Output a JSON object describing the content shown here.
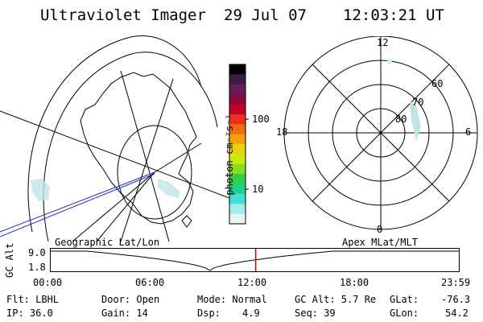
{
  "header": {
    "title": "Ultraviolet Imager",
    "date": "29 Jul 07",
    "time": "12:03:21 UT"
  },
  "colorbar": {
    "unit_label": "photon cm⁻²s⁻¹",
    "ticks": [
      "100",
      "10"
    ],
    "colors": [
      "#000000",
      "#3c1a4a",
      "#6b1a5a",
      "#8a0a3a",
      "#c0002a",
      "#e8301a",
      "#f06a10",
      "#f4a010",
      "#e8d010",
      "#c8ea10",
      "#80e020",
      "#30d040",
      "#20d090",
      "#40e0d0",
      "#a0ecec",
      "#e8f4f4"
    ]
  },
  "left_panel": {
    "label": "Geographic Lat/Lon"
  },
  "right_panel": {
    "label": "Apex MLat/MLT",
    "mlt_labels": {
      "top": "12",
      "left": "18",
      "right": "6",
      "bottom": "0"
    },
    "lat_labels": [
      "60",
      "70",
      "80"
    ]
  },
  "timeline": {
    "axis_label": "GC Alt",
    "y_ticks": [
      "9.0",
      "1.8"
    ],
    "x_ticks": [
      "00:00",
      "06:00",
      "12:00",
      "18:00",
      "23:59"
    ],
    "current_time_fraction": 0.5023,
    "curve_color": "#000000",
    "marker_color": "#e00000"
  },
  "info": {
    "filter": "Flt: LBHL",
    "ip": "IP: 36.0",
    "door": "Door: Open",
    "gain": "Gain: 14",
    "mode": "Mode: Normal",
    "dsp_label": "Dsp:",
    "dsp_value": "4.9",
    "gc_alt": "GC Alt: 5.7 Re",
    "seq": "Seq: 39",
    "glat_label": "GLat:",
    "glat_value": "-76.3",
    "glon_label": "GLon:",
    "glon_value": "54.2"
  }
}
